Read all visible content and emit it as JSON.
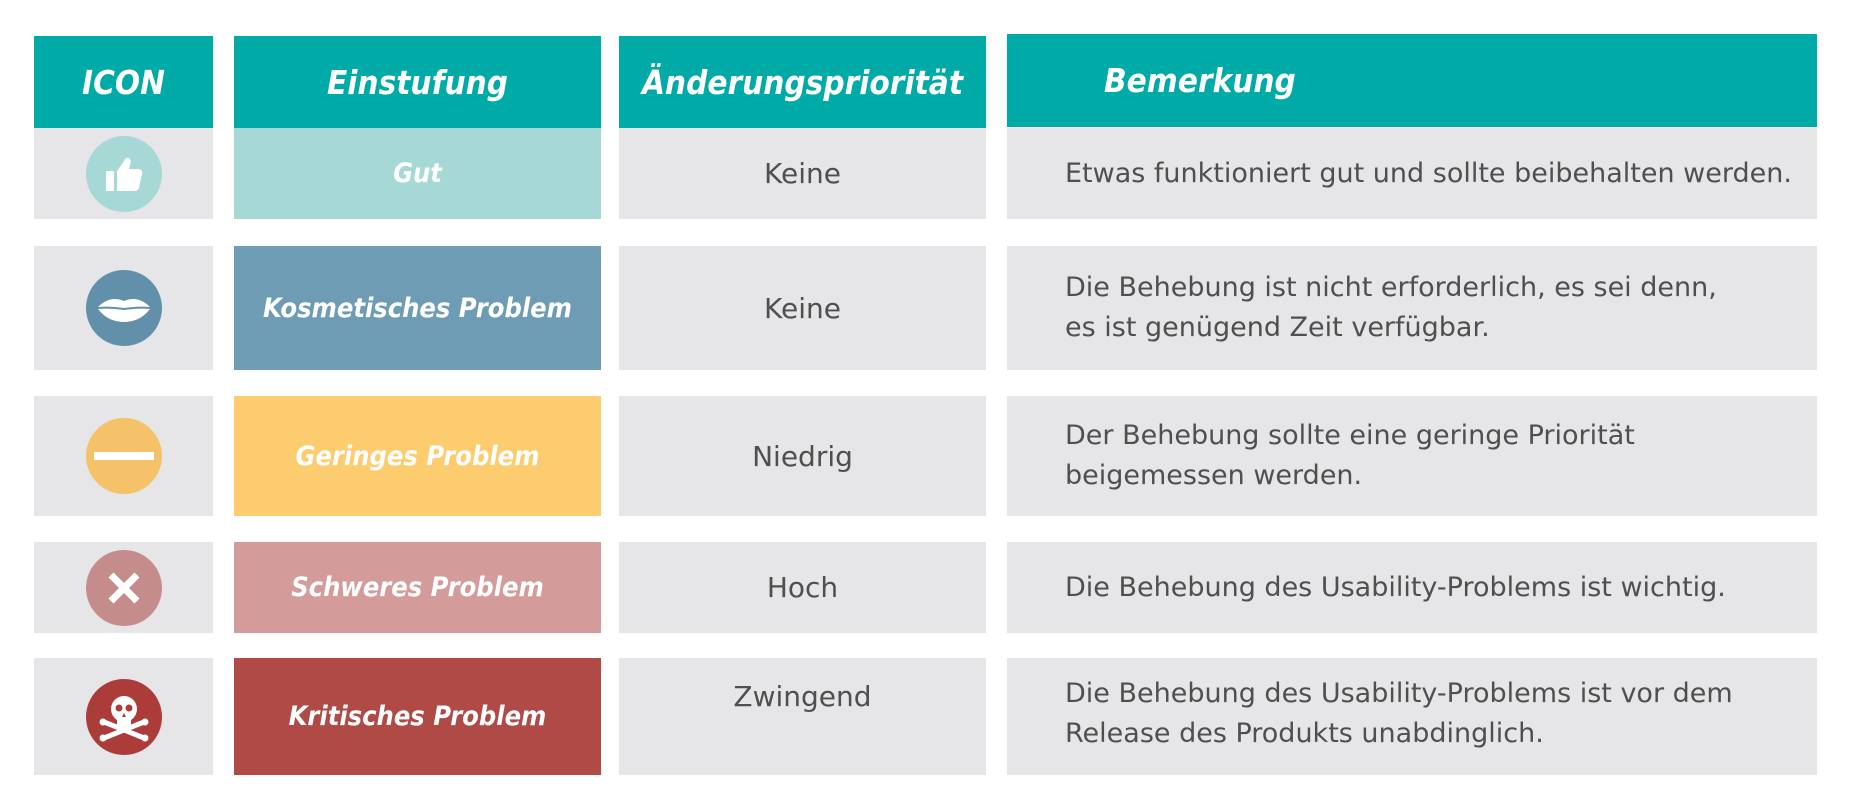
{
  "header": {
    "icon": "ICON",
    "einstufung": "Einstufung",
    "prioritaet": "Änderungspriorität",
    "bemerkung": "Bemerkung"
  },
  "rows": [
    {
      "icon": "thumbs-up-icon",
      "einstufung": "Gut",
      "prioritaet": "Keine",
      "bemerkung_lines": [
        "Etwas funktioniert gut und sollte beibehalten werden."
      ],
      "color": "#a6d9d5",
      "icon_bg": "#a6d9d5"
    },
    {
      "icon": "lips-icon",
      "einstufung": "Kosmetisches Problem",
      "prioritaet": "Keine",
      "bemerkung_lines": [
        "Die Behebung ist nicht erforderlich, es sei denn,",
        "es ist genügend Zeit verfügbar."
      ],
      "color": "#6e9cb4",
      "icon_bg": "#6290aa"
    },
    {
      "icon": "minus-icon",
      "einstufung": "Geringes Problem",
      "prioritaet": "Niedrig",
      "bemerkung_lines": [
        "Der Behebung sollte eine geringe Priorität",
        "beigemessen werden."
      ],
      "color": "#fdcc6e",
      "icon_bg": "#f5c26a"
    },
    {
      "icon": "x-icon",
      "einstufung": "Schweres Problem",
      "prioritaet": "Hoch",
      "bemerkung_lines": [
        "Die Behebung des Usability-Problems ist wichtig."
      ],
      "color": "#d49b9b",
      "icon_bg": "#c58c8c"
    },
    {
      "icon": "skull-crossbones-icon",
      "einstufung": "Kritisches Problem",
      "prioritaet": "Zwingend",
      "bemerkung_lines": [
        "Die Behebung des Usability-Problems ist vor dem",
        "Release des Produkts unabdinglich."
      ],
      "color": "#b04a47",
      "icon_bg": "#ac3c3a"
    }
  ]
}
